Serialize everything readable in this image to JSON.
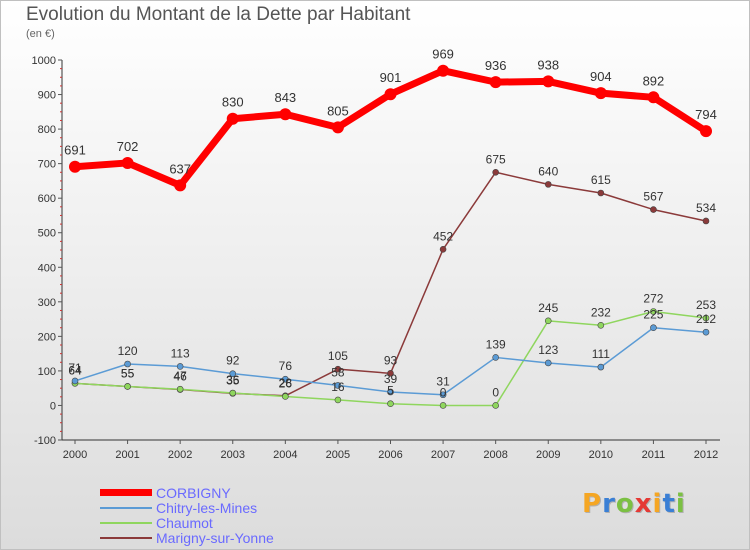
{
  "title": "Evolution du Montant de la Dette par Habitant",
  "subtitle": "(en €)",
  "brand": {
    "letters": [
      "P",
      "r",
      "o",
      "x",
      "i",
      "t",
      "i"
    ],
    "colors": [
      "#f5a623",
      "#3a7fd5",
      "#7bc043",
      "#e53935",
      "#f5a623",
      "#3a7fd5",
      "#7bc043"
    ]
  },
  "chart_data": {
    "type": "line",
    "title": "Evolution du Montant de la Dette par Habitant",
    "subtitle": "(en €)",
    "xlabel": "",
    "ylabel": "",
    "ylim": [
      -100,
      1000
    ],
    "yticks": [
      -100,
      0,
      100,
      200,
      300,
      400,
      500,
      600,
      700,
      800,
      900,
      1000
    ],
    "grid": false,
    "legend_position": "bottom-left",
    "x": [
      "2000",
      "2001",
      "2002",
      "2003",
      "2004",
      "2005",
      "2006",
      "2007",
      "2008",
      "2009",
      "2010",
      "2011",
      "2012"
    ],
    "series": [
      {
        "name": "CORBIGNY",
        "color": "#ff0000",
        "values": [
          691,
          702,
          637,
          830,
          843,
          805,
          901,
          969,
          936,
          938,
          904,
          892,
          794
        ],
        "labels": [
          "691",
          "702",
          "637",
          "830",
          "843",
          "805",
          "901",
          "969",
          "936",
          "938",
          "904",
          "892",
          "794"
        ]
      },
      {
        "name": "Chitry-les-Mines",
        "color": "#5b9bd5",
        "values": [
          71,
          120,
          113,
          92,
          76,
          58,
          39,
          31,
          139,
          123,
          111,
          225,
          212
        ],
        "labels": [
          "71",
          "120",
          "113",
          "92",
          "76",
          "58",
          "39",
          "31",
          "139",
          "123",
          "111",
          "225",
          "212"
        ]
      },
      {
        "name": "Chaumot",
        "color": "#8fd65e",
        "values": [
          64,
          55,
          47,
          36,
          26,
          16,
          5,
          0,
          0,
          245,
          232,
          272,
          253
        ],
        "labels": [
          "64",
          "55",
          "47",
          "36",
          "26",
          "16",
          "5",
          "0",
          "0",
          "245",
          "232",
          "272",
          "253"
        ]
      },
      {
        "name": "Marigny-sur-Yonne",
        "color": "#8b3a3a",
        "values": [
          64,
          55,
          46,
          35,
          28,
          105,
          93,
          452,
          675,
          640,
          615,
          567,
          534
        ],
        "labels": [
          "64",
          "55",
          "46",
          "35",
          "28",
          "105",
          "93",
          "452",
          "675",
          "640",
          "615",
          "567",
          "534"
        ]
      }
    ]
  }
}
